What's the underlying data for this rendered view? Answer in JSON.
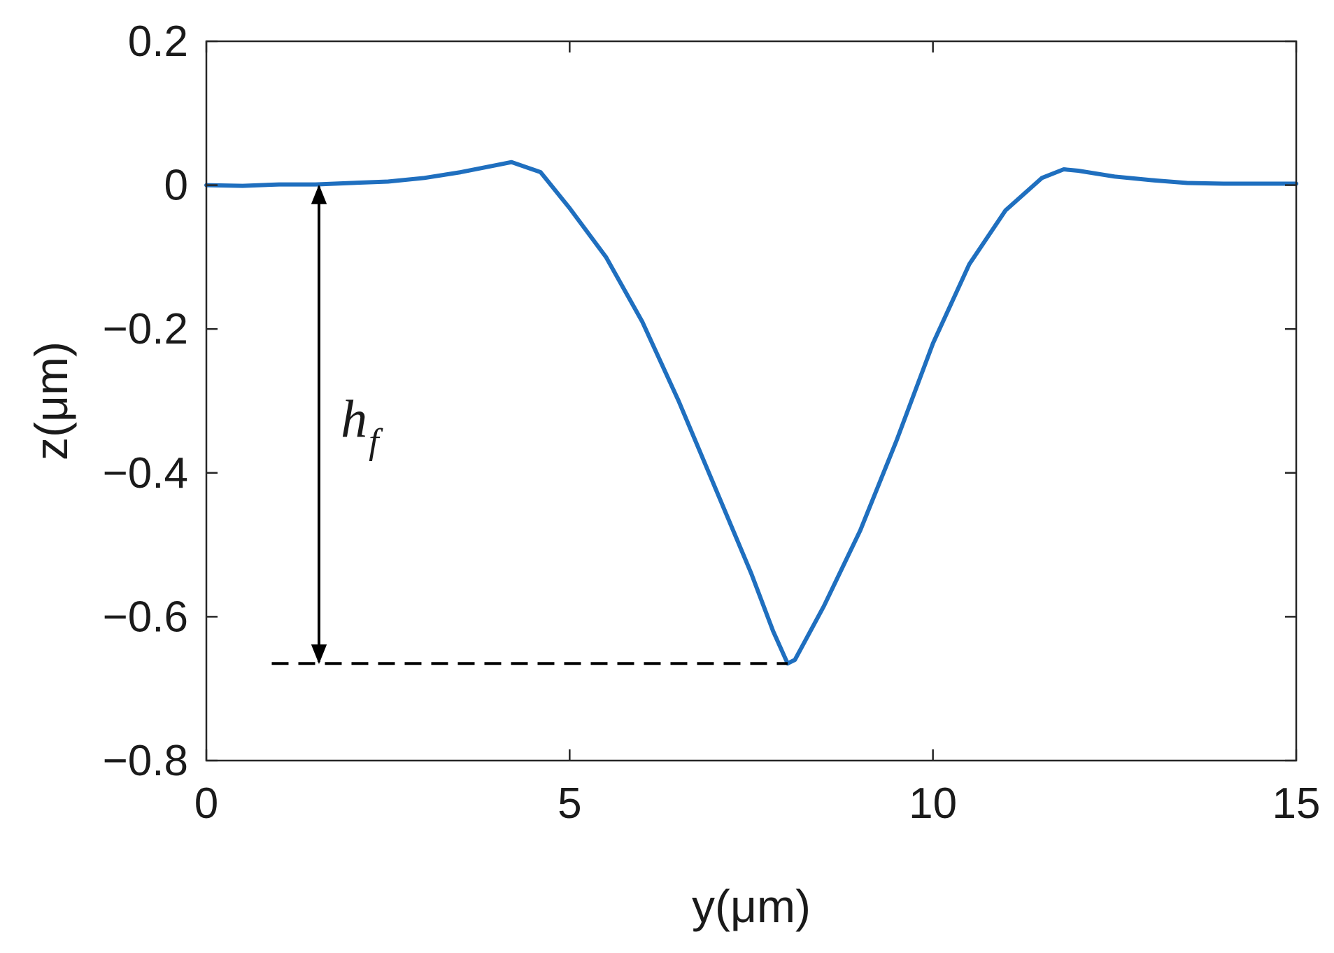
{
  "chart_data": {
    "type": "line",
    "xlabel": "y(μm)",
    "ylabel": "z(μm)",
    "xlim": [
      0,
      15
    ],
    "ylim": [
      -0.8,
      0.2
    ],
    "xticks": [
      0,
      5,
      10,
      15
    ],
    "xtick_labels": [
      "0",
      "5",
      "10",
      "15"
    ],
    "yticks": [
      0.2,
      0,
      -0.2,
      -0.4,
      -0.6,
      -0.8
    ],
    "ytick_labels": [
      "0.2",
      "0",
      "−0.2",
      "−0.4",
      "−0.6",
      "−0.8"
    ],
    "grid": false,
    "box": true,
    "series": [
      {
        "color": "#1f6fbf",
        "x": [
          0,
          0.5,
          1.0,
          1.5,
          2.0,
          2.5,
          3.0,
          3.5,
          4.0,
          4.2,
          4.6,
          5.0,
          5.5,
          6.0,
          6.5,
          7.0,
          7.5,
          7.8,
          8.0,
          8.1,
          8.5,
          9.0,
          9.5,
          10.0,
          10.5,
          11.0,
          11.5,
          11.8,
          12.0,
          12.5,
          13.0,
          13.5,
          14.0,
          14.5,
          15.0
        ],
        "y": [
          0.0,
          -0.001,
          0.001,
          0.001,
          0.003,
          0.005,
          0.01,
          0.018,
          0.028,
          0.032,
          0.018,
          -0.032,
          -0.1,
          -0.19,
          -0.3,
          -0.42,
          -0.54,
          -0.62,
          -0.665,
          -0.66,
          -0.585,
          -0.48,
          -0.355,
          -0.22,
          -0.11,
          -0.035,
          0.01,
          0.022,
          0.02,
          0.012,
          0.007,
          0.003,
          0.002,
          0.002,
          0.002
        ]
      }
    ],
    "annotations": [
      {
        "type": "double-arrow",
        "x": 1.55,
        "y_from": 0.0,
        "y_to": -0.665,
        "color": "#000000"
      },
      {
        "type": "dashed-line",
        "x_from": 0.9,
        "x_to": 8.0,
        "y": -0.665,
        "color": "#000000"
      },
      {
        "type": "text",
        "text": "h",
        "subscript": "f",
        "x": 1.85,
        "y": -0.33
      }
    ]
  }
}
